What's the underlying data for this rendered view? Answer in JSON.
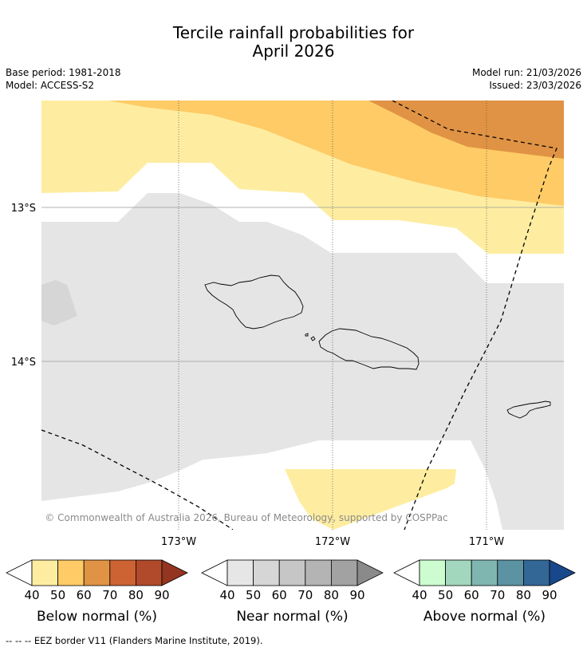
{
  "title": {
    "line1": "Tercile rainfall probabilities for",
    "line2": "April 2026"
  },
  "meta": {
    "base_period": "Base period: 1981-2018",
    "model": "Model: ACCESS-S2",
    "model_run": "Model run: 21/03/2026",
    "issued": "Issued: 23/03/2026"
  },
  "map": {
    "lat_labels": [
      "13°S",
      "14°S"
    ],
    "lon_labels": [
      "173°W",
      "172°W",
      "171°W"
    ],
    "copyright": "© Commonwealth of Australia 2026, Bureau of Meteorology, supported by COSPPac",
    "colors": {
      "near_normal_fill": "#e5e5e5",
      "below_40_50": "#feeda1",
      "below_50_60": "#fecb66",
      "below_60_70": "#e09344"
    }
  },
  "legends": [
    {
      "name": "below",
      "title": "Below normal (%)",
      "ticks": [
        "40",
        "50",
        "60",
        "70",
        "80",
        "90"
      ],
      "colors": [
        "#ffffff",
        "#feeda1",
        "#fecb66",
        "#e09344",
        "#cd6333",
        "#b04a2a",
        "#933520"
      ]
    },
    {
      "name": "near",
      "title": "Near normal (%)",
      "ticks": [
        "40",
        "50",
        "60",
        "70",
        "80",
        "90"
      ],
      "colors": [
        "#ffffff",
        "#e6e6e6",
        "#d6d6d6",
        "#c6c6c6",
        "#b4b4b4",
        "#a2a2a2",
        "#8a8a8a"
      ]
    },
    {
      "name": "above",
      "title": "Above normal (%)",
      "ticks": [
        "40",
        "50",
        "60",
        "70",
        "80",
        "90"
      ],
      "colors": [
        "#ffffff",
        "#ccfcd0",
        "#a2d7bd",
        "#80b6b0",
        "#5c93a3",
        "#336796",
        "#18488b"
      ]
    }
  ],
  "footnote": "-- -- -- EEZ border V11 (Flanders Marine Institute, 2019)."
}
